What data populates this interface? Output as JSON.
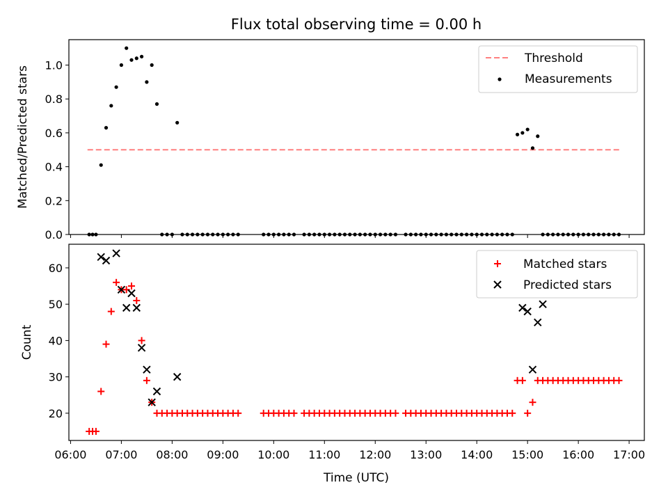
{
  "figure_title": "Flux total observing time = 0.00 h",
  "x_axis_label": "Time (UTC)",
  "x_tick_labels": [
    "06:00",
    "07:00",
    "08:00",
    "09:00",
    "10:00",
    "11:00",
    "12:00",
    "13:00",
    "14:00",
    "15:00",
    "16:00",
    "17:00"
  ],
  "chart_data": [
    {
      "type": "scatter",
      "title": "Flux total observing time = 0.00 h",
      "xlabel": "",
      "ylabel": "Matched/Predicted stars",
      "ylim": [
        0,
        1.15
      ],
      "xlim": [
        "05:58",
        "17:18"
      ],
      "yticks": [
        0.0,
        0.2,
        0.4,
        0.6,
        0.8,
        1.0
      ],
      "ytick_labels": [
        "0.0",
        "0.2",
        "0.4",
        "0.6",
        "0.8",
        "1.0"
      ],
      "legend_position": "top-right",
      "legend": [
        "Threshold",
        "Measurements"
      ],
      "colors": {
        "threshold": "#ff7f7f",
        "measurements": "#000000"
      },
      "threshold": {
        "name": "Threshold",
        "y": 0.5,
        "x_range": [
          "06:20",
          "16:50"
        ]
      },
      "series": [
        {
          "name": "Measurements",
          "x": [
            "06:22",
            "06:26",
            "06:30",
            "06:36",
            "06:42",
            "06:48",
            "06:54",
            "07:00",
            "07:06",
            "07:12",
            "07:18",
            "07:24",
            "07:30",
            "07:36",
            "07:42",
            "07:48",
            "07:54",
            "08:00",
            "08:06",
            "08:12",
            "08:18",
            "08:24",
            "08:30",
            "08:36",
            "08:42",
            "08:48",
            "08:54",
            "09:00",
            "09:06",
            "09:12",
            "09:18",
            "09:48",
            "09:54",
            "10:00",
            "10:06",
            "10:12",
            "10:18",
            "10:24",
            "10:36",
            "10:42",
            "10:48",
            "10:54",
            "11:00",
            "11:06",
            "11:12",
            "11:18",
            "11:24",
            "11:30",
            "11:36",
            "11:42",
            "11:48",
            "11:54",
            "12:00",
            "12:06",
            "12:12",
            "12:18",
            "12:24",
            "12:36",
            "12:42",
            "12:48",
            "12:54",
            "13:00",
            "13:06",
            "13:12",
            "13:18",
            "13:24",
            "13:30",
            "13:36",
            "13:42",
            "13:48",
            "13:54",
            "14:00",
            "14:06",
            "14:12",
            "14:18",
            "14:24",
            "14:30",
            "14:36",
            "14:42",
            "14:48",
            "14:54",
            "15:00",
            "15:06",
            "15:12",
            "15:18",
            "15:24",
            "15:30",
            "15:36",
            "15:42",
            "15:48",
            "15:54",
            "16:00",
            "16:06",
            "16:12",
            "16:18",
            "16:24",
            "16:30",
            "16:36",
            "16:42",
            "16:48"
          ],
          "y": [
            0,
            0,
            0,
            0.41,
            0.63,
            0.76,
            0.87,
            1.0,
            1.1,
            1.03,
            1.04,
            1.05,
            0.9,
            1.0,
            0.77,
            0,
            0,
            0,
            0.66,
            0,
            0,
            0,
            0,
            0,
            0,
            0,
            0,
            0,
            0,
            0,
            0,
            0,
            0,
            0,
            0,
            0,
            0,
            0,
            0,
            0,
            0,
            0,
            0,
            0,
            0,
            0,
            0,
            0,
            0,
            0,
            0,
            0,
            0,
            0,
            0,
            0,
            0,
            0,
            0,
            0,
            0,
            0,
            0,
            0,
            0,
            0,
            0,
            0,
            0,
            0,
            0,
            0,
            0,
            0,
            0,
            0,
            0,
            0,
            0,
            0.59,
            0.6,
            0.62,
            0.51,
            0.58,
            0,
            0,
            0,
            0,
            0,
            0,
            0,
            0,
            0,
            0,
            0,
            0,
            0,
            0,
            0,
            0
          ]
        }
      ]
    },
    {
      "type": "scatter",
      "title": "",
      "xlabel": "Time (UTC)",
      "ylabel": "Count",
      "ylim": [
        12.5,
        66.5
      ],
      "xlim": [
        "05:58",
        "17:18"
      ],
      "yticks": [
        20,
        30,
        40,
        50,
        60
      ],
      "ytick_labels": [
        "20",
        "30",
        "40",
        "50",
        "60"
      ],
      "legend_position": "top-right",
      "legend": [
        "Matched stars",
        "Predicted stars"
      ],
      "colors": {
        "matched": "#ff0000",
        "predicted": "#000000"
      },
      "series": [
        {
          "name": "Matched stars",
          "marker": "plus",
          "x": [
            "06:22",
            "06:26",
            "06:30",
            "06:36",
            "06:42",
            "06:48",
            "06:54",
            "07:00",
            "07:06",
            "07:12",
            "07:18",
            "07:24",
            "07:30",
            "07:36",
            "07:42",
            "07:48",
            "07:54",
            "08:00",
            "08:06",
            "08:12",
            "08:18",
            "08:24",
            "08:30",
            "08:36",
            "08:42",
            "08:48",
            "08:54",
            "09:00",
            "09:06",
            "09:12",
            "09:18",
            "09:48",
            "09:54",
            "10:00",
            "10:06",
            "10:12",
            "10:18",
            "10:24",
            "10:36",
            "10:42",
            "10:48",
            "10:54",
            "11:00",
            "11:06",
            "11:12",
            "11:18",
            "11:24",
            "11:30",
            "11:36",
            "11:42",
            "11:48",
            "11:54",
            "12:00",
            "12:06",
            "12:12",
            "12:18",
            "12:24",
            "12:36",
            "12:42",
            "12:48",
            "12:54",
            "13:00",
            "13:06",
            "13:12",
            "13:18",
            "13:24",
            "13:30",
            "13:36",
            "13:42",
            "13:48",
            "13:54",
            "14:00",
            "14:06",
            "14:12",
            "14:18",
            "14:24",
            "14:30",
            "14:36",
            "14:42",
            "14:48",
            "14:54",
            "15:00",
            "15:06",
            "15:12",
            "15:18",
            "15:24",
            "15:30",
            "15:36",
            "15:42",
            "15:48",
            "15:54",
            "16:00",
            "16:06",
            "16:12",
            "16:18",
            "16:24",
            "16:30",
            "16:36",
            "16:42",
            "16:48"
          ],
          "y": [
            15,
            15,
            15,
            26,
            39,
            48,
            56,
            54,
            54,
            55,
            51,
            40,
            29,
            23,
            20,
            20,
            20,
            20,
            20,
            20,
            20,
            20,
            20,
            20,
            20,
            20,
            20,
            20,
            20,
            20,
            20,
            20,
            20,
            20,
            20,
            20,
            20,
            20,
            20,
            20,
            20,
            20,
            20,
            20,
            20,
            20,
            20,
            20,
            20,
            20,
            20,
            20,
            20,
            20,
            20,
            20,
            20,
            20,
            20,
            20,
            20,
            20,
            20,
            20,
            20,
            20,
            20,
            20,
            20,
            20,
            20,
            20,
            20,
            20,
            20,
            20,
            20,
            20,
            20,
            29,
            29,
            20,
            23,
            29,
            29,
            29,
            29,
            29,
            29,
            29,
            29,
            29,
            29,
            29,
            29,
            29,
            29,
            29,
            29,
            29
          ]
        },
        {
          "name": "Predicted stars",
          "marker": "x",
          "x": [
            "06:36",
            "06:42",
            "06:54",
            "07:00",
            "07:06",
            "07:12",
            "07:18",
            "07:24",
            "07:30",
            "07:36",
            "07:42",
            "08:06",
            "14:54",
            "15:00",
            "15:06",
            "15:12",
            "15:18"
          ],
          "y": [
            63,
            62,
            64,
            54,
            49,
            53,
            49,
            38,
            32,
            23,
            26,
            30,
            49,
            48,
            32,
            45,
            50
          ]
        }
      ]
    }
  ]
}
